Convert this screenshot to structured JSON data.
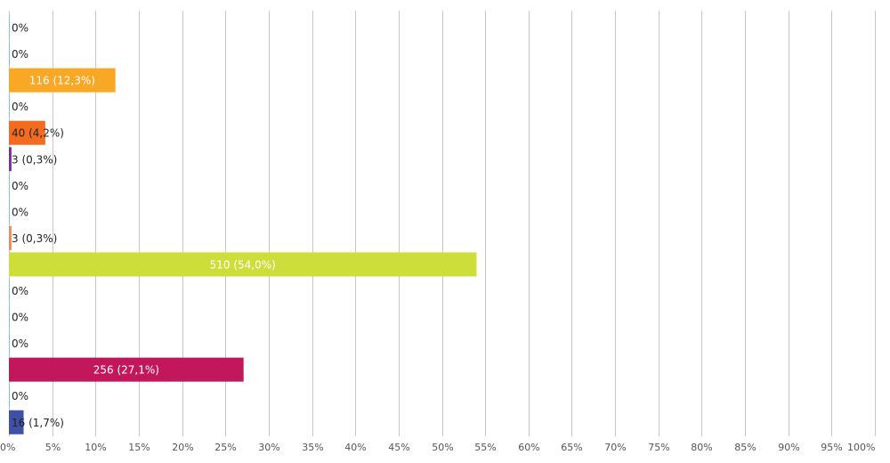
{
  "chart_data": {
    "type": "bar",
    "orientation": "horizontal",
    "xlim": [
      0,
      100
    ],
    "x_ticks": [
      "0%",
      "5%",
      "10%",
      "15%",
      "20%",
      "25%",
      "30%",
      "35%",
      "40%",
      "45%",
      "50%",
      "55%",
      "60%",
      "65%",
      "70%",
      "75%",
      "80%",
      "85%",
      "90%",
      "95%",
      "100%"
    ],
    "grid": "vertical",
    "bars": [
      {
        "value": 0,
        "label": "0%",
        "color": "#7fbfe6"
      },
      {
        "value": 0,
        "label": "0%",
        "color": "#7fbfe6"
      },
      {
        "value": 12.3,
        "label": "116 (12,3%)",
        "color": "#f9a825"
      },
      {
        "value": 0,
        "label": "0%",
        "color": "#7fbfe6"
      },
      {
        "value": 4.2,
        "label": "40 (4,2%)",
        "color": "#f26b21"
      },
      {
        "value": 0.3,
        "label": "3 (0,3%)",
        "color": "#7b2f9e"
      },
      {
        "value": 0,
        "label": "0%",
        "color": "#7fbfe6"
      },
      {
        "value": 0,
        "label": "0%",
        "color": "#7fbfe6"
      },
      {
        "value": 0.3,
        "label": "3 (0,3%)",
        "color": "#f08a5d"
      },
      {
        "value": 54.0,
        "label": "510 (54,0%)",
        "color": "#cddd3a"
      },
      {
        "value": 0,
        "label": "0%",
        "color": "#7fbfe6"
      },
      {
        "value": 0,
        "label": "0%",
        "color": "#7fbfe6"
      },
      {
        "value": 0,
        "label": "0%",
        "color": "#7fbfe6"
      },
      {
        "value": 27.1,
        "label": "256 (27,1%)",
        "color": "#c2185b"
      },
      {
        "value": 0,
        "label": "0%",
        "color": "#7fbfe6"
      },
      {
        "value": 1.7,
        "label": "16 (1,7%)",
        "color": "#3f51a5"
      }
    ]
  }
}
